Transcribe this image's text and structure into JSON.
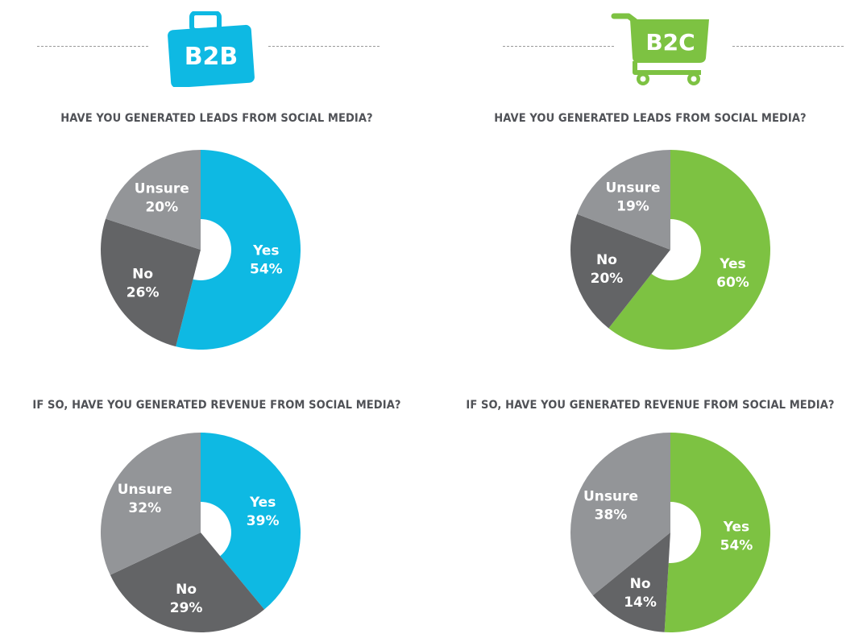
{
  "groups": [
    {
      "badge_text": "B2B",
      "badge_icon": "briefcase-icon",
      "accent": "#0eb9e3",
      "charts": [
        {
          "question": "HAVE YOU GENERATED LEADS FROM SOCIAL MEDIA?"
        },
        {
          "question": "IF SO, HAVE YOU GENERATED REVENUE FROM SOCIAL MEDIA?"
        }
      ]
    },
    {
      "badge_text": "B2C",
      "badge_icon": "shopping-cart-icon",
      "accent": "#7dc242",
      "charts": [
        {
          "question": "HAVE YOU GENERATED LEADS FROM SOCIAL MEDIA?"
        },
        {
          "question": "IF SO, HAVE YOU GENERATED REVENUE FROM SOCIAL MEDIA?"
        }
      ]
    }
  ],
  "chart_data": [
    {
      "type": "pie",
      "group": "B2B",
      "title": "HAVE YOU GENERATED LEADS FROM SOCIAL MEDIA?",
      "slices": [
        {
          "label": "Yes",
          "value": 54,
          "display": "54%",
          "color": "#0eb9e3"
        },
        {
          "label": "No",
          "value": 26,
          "display": "26%",
          "color": "#636466"
        },
        {
          "label": "Unsure",
          "value": 20,
          "display": "20%",
          "color": "#939598"
        }
      ]
    },
    {
      "type": "pie",
      "group": "B2B",
      "title": "IF SO, HAVE YOU GENERATED REVENUE FROM SOCIAL MEDIA?",
      "slices": [
        {
          "label": "Yes",
          "value": 39,
          "display": "39%",
          "color": "#0eb9e3"
        },
        {
          "label": "No",
          "value": 29,
          "display": "29%",
          "color": "#636466"
        },
        {
          "label": "Unsure",
          "value": 32,
          "display": "32%",
          "color": "#939598"
        }
      ]
    },
    {
      "type": "pie",
      "group": "B2C",
      "title": "HAVE YOU GENERATED LEADS FROM SOCIAL MEDIA?",
      "slices": [
        {
          "label": "Yes",
          "value": 60,
          "display": "60%",
          "color": "#7dc242"
        },
        {
          "label": "No",
          "value": 20,
          "display": "20%",
          "color": "#636466"
        },
        {
          "label": "Unsure",
          "value": 19,
          "display": "19%",
          "color": "#939598"
        }
      ]
    },
    {
      "type": "pie",
      "group": "B2C",
      "title": "IF SO, HAVE YOU GENERATED REVENUE FROM SOCIAL MEDIA?",
      "slices": [
        {
          "label": "Yes",
          "value": 54,
          "display": "54%",
          "color": "#7dc242"
        },
        {
          "label": "No",
          "value": 14,
          "display": "14%",
          "color": "#636466"
        },
        {
          "label": "Unsure",
          "value": 38,
          "display": "38%",
          "color": "#939598"
        }
      ]
    }
  ]
}
